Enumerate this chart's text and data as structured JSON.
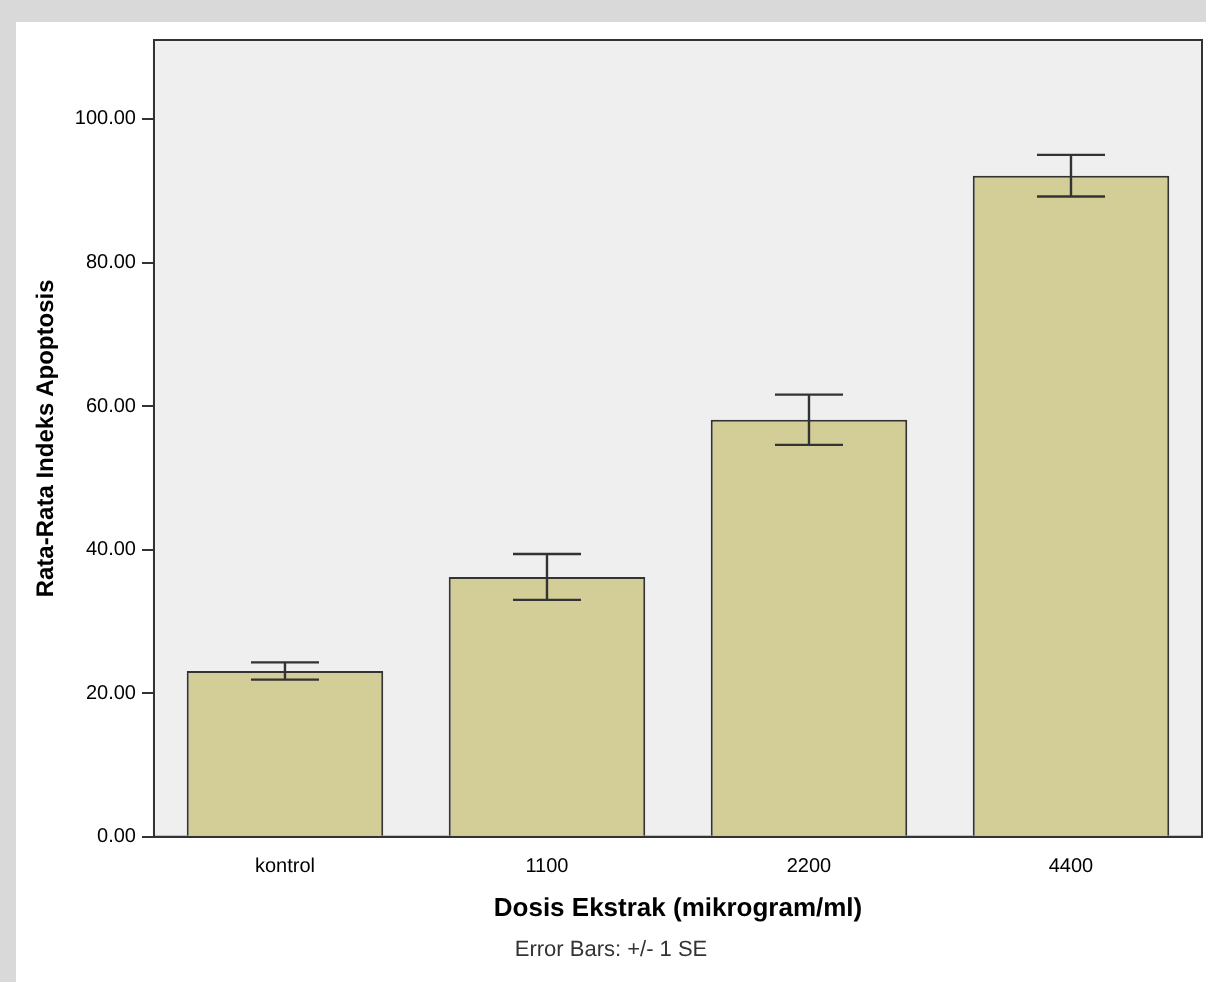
{
  "chart_data": {
    "type": "bar",
    "categories": [
      "kontrol",
      "1100",
      "2200",
      "4400"
    ],
    "values": [
      23.1,
      36.2,
      58.1,
      92.1
    ],
    "errors": [
      1.2,
      3.2,
      3.5,
      2.9
    ],
    "color": "#d3ce97",
    "xlabel": "Dosis Ekstrak (mikrogram/ml)",
    "ylabel": "Rata-Rata Indeks Apoptosis",
    "ylim": [
      0,
      111
    ],
    "yticks": [
      {
        "value": 0,
        "label": "0.00"
      },
      {
        "value": 20,
        "label": "20.00"
      },
      {
        "value": 40,
        "label": "40.00"
      },
      {
        "value": 60,
        "label": "60.00"
      },
      {
        "value": 80,
        "label": "80.00"
      },
      {
        "value": 100,
        "label": "100.00"
      }
    ],
    "grid": false,
    "legend": false,
    "annotations": [
      "Error Bars: +/- 1 SE"
    ]
  }
}
